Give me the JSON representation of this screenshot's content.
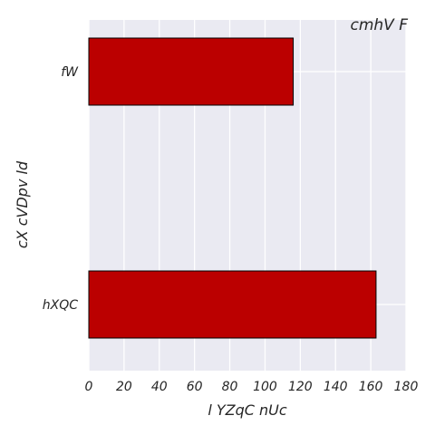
{
  "chart_data": {
    "type": "bar",
    "orientation": "horizontal",
    "title": "cmhV  F",
    "xlabel": "l YZqC nUc",
    "ylabel": "cX cVDpv ld",
    "categories": [
      "fW",
      "hXQC"
    ],
    "values": [
      116,
      163
    ],
    "xlim": [
      0,
      180
    ],
    "xticks": [
      0,
      20,
      40,
      60,
      80,
      100,
      120,
      140,
      160,
      180
    ],
    "grid": true,
    "bar_color": "#bb0000",
    "bar_edge_color": "#000000",
    "background_color": "#eaeaf2",
    "grid_color": "#ffffff"
  }
}
